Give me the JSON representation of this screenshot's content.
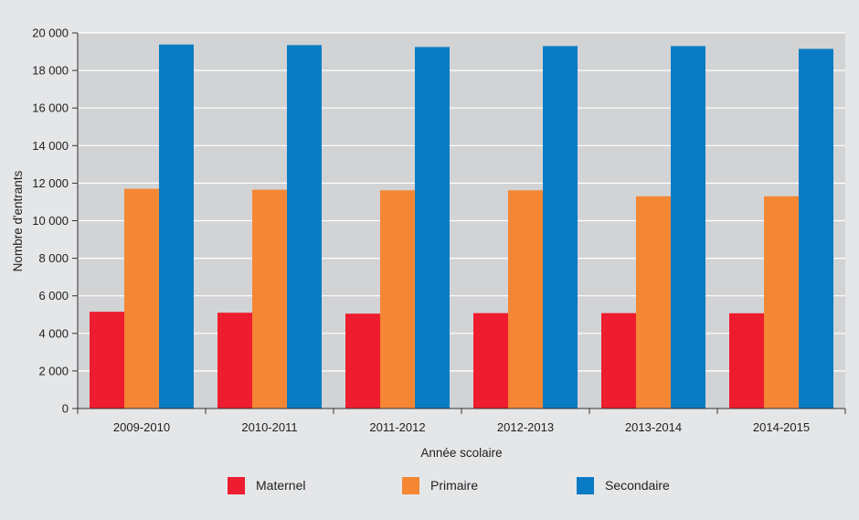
{
  "chart_data": {
    "type": "bar",
    "title": "",
    "xlabel": "Année scolaire",
    "ylabel": "Nombre d'entrants",
    "ylim": [
      0,
      20000
    ],
    "yticks": [
      0,
      2000,
      4000,
      6000,
      8000,
      10000,
      12000,
      14000,
      16000,
      18000,
      20000
    ],
    "ytick_labels": [
      "0",
      "2 000",
      "4 000",
      "6 000",
      "8 000",
      "10 000",
      "12 000",
      "14 000",
      "16 000",
      "18 000",
      "20 000"
    ],
    "categories": [
      "2009-2010",
      "2010-2011",
      "2011-2012",
      "2012-2013",
      "2013-2014",
      "2014-2015"
    ],
    "series": [
      {
        "name": "Maternel",
        "color": "#ed1c2e",
        "values": [
          5150,
          5100,
          5050,
          5080,
          5080,
          5070
        ]
      },
      {
        "name": "Primaire",
        "color": "#f58634",
        "values": [
          11700,
          11650,
          11620,
          11620,
          11300,
          11300
        ]
      },
      {
        "name": "Secondaire",
        "color": "#0a7cc4",
        "values": [
          19380,
          19350,
          19250,
          19300,
          19300,
          19150
        ]
      }
    ],
    "grid": true,
    "legend_position": "bottom",
    "plot_background": "#d2d3d5",
    "gridline_color": "#ffffff"
  }
}
